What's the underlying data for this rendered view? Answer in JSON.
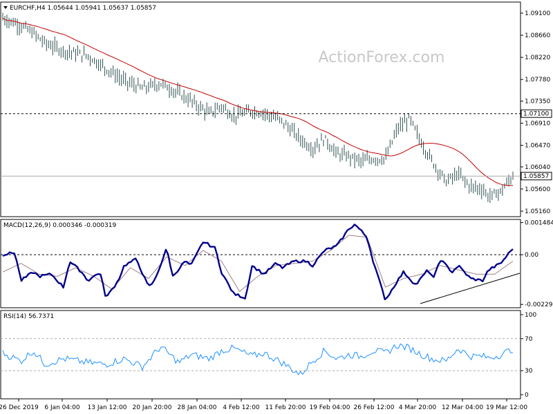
{
  "watermark": "ActionForex.com",
  "main": {
    "header": "EURCHF,H4  1.05644 1.05941 1.05637 1.05857",
    "ticks": [
      "1.09100",
      "1.08660",
      "1.08220",
      "1.07780",
      "1.07350",
      "1.06910",
      "1.06470",
      "1.06040",
      "1.05600",
      "1.05160"
    ],
    "level_label": "1.07100",
    "price_label": "1.05857",
    "level_value": 1.071,
    "price_value": 1.05857,
    "ylim": [
      1.0505,
      1.0932
    ]
  },
  "macd": {
    "header": "MACD(12,26,9) 0.000346 -0.000319",
    "ticks": [
      "0.001484",
      "0.00",
      "-0.002297"
    ],
    "ylim": [
      -0.00245,
      0.00163
    ]
  },
  "rsi": {
    "header": "RSI(14) 56.7371",
    "ticks": [
      "100",
      "70",
      "30",
      "0"
    ],
    "levels": [
      70,
      30
    ],
    "ylim": [
      0,
      100
    ]
  },
  "x_labels": [
    "26 Dec 2019",
    "6 Jan 04:00",
    "13 Jan 12:00",
    "20 Jan 20:00",
    "28 Jan 04:00",
    "4 Feb 12:00",
    "11 Feb 20:00",
    "19 Feb 04:00",
    "26 Feb 12:00",
    "4 Mar 20:00",
    "12 Mar 04:00",
    "19 Mar 12:00"
  ],
  "colors": {
    "bars": "#2f4f4f",
    "ma": "#c00000",
    "macd": "#00008b",
    "signal": "#a08080",
    "rsi": "#1e90ff",
    "grid": "#000000"
  },
  "chart_data": [
    {
      "type": "bar",
      "title": "EURCHF,H4",
      "ylim": [
        1.0505,
        1.0932
      ],
      "close_path_days": [
        0,
        3,
        5,
        7,
        10,
        14,
        17,
        20,
        23,
        26,
        29,
        31,
        34,
        36,
        38,
        41,
        43,
        46,
        49,
        51,
        53,
        55,
        57,
        59,
        61,
        63,
        65,
        67,
        69,
        71,
        73,
        75,
        77,
        79,
        80,
        82,
        84
      ],
      "close_path": [
        1.09,
        1.0885,
        1.087,
        1.085,
        1.0835,
        1.0825,
        1.08,
        1.0775,
        1.076,
        1.077,
        1.075,
        1.0735,
        1.071,
        1.0725,
        1.0705,
        1.0715,
        1.0712,
        1.0695,
        1.066,
        1.064,
        1.066,
        1.063,
        1.0625,
        1.0615,
        1.062,
        1.062,
        1.068,
        1.07,
        1.065,
        1.061,
        1.0575,
        1.059,
        1.0565,
        1.056,
        1.0545,
        1.0555,
        1.0586
      ]
    },
    {
      "type": "line",
      "title": "MACD(12,26,9)",
      "ylim": [
        -0.00245,
        0.00163
      ],
      "series": [
        {
          "name": "MACD",
          "x_days": [
            0,
            2,
            3,
            5,
            6,
            8,
            10,
            11,
            13,
            14,
            16,
            17,
            19,
            20,
            22,
            24,
            25,
            27,
            28,
            30,
            31,
            33,
            35,
            36,
            38,
            40,
            41,
            43,
            45,
            46,
            48,
            50,
            51,
            53,
            55,
            57,
            58,
            60,
            61,
            63,
            65,
            66,
            68,
            70,
            71,
            72,
            74,
            75,
            77,
            79,
            80,
            82,
            84
          ],
          "values": [
            0.0,
            0.0001,
            -0.0012,
            -0.0008,
            -0.001,
            -0.0009,
            -0.0015,
            -0.0003,
            -0.0008,
            -0.0012,
            -0.0008,
            -0.002,
            -0.0012,
            -0.0005,
            -0.0002,
            -0.0015,
            -0.0012,
            0.0003,
            -0.001,
            -0.0003,
            -0.0005,
            0.0006,
            0.0003,
            -0.0008,
            -0.0018,
            -0.002,
            -0.0005,
            -0.0009,
            -0.0004,
            -0.0006,
            -0.0003,
            -0.0003,
            -0.0005,
            0.0002,
            0.0004,
            0.0012,
            0.0014,
            0.0008,
            -0.0003,
            -0.0021,
            -0.0012,
            -0.0008,
            -0.0014,
            -0.0007,
            -0.0011,
            -0.0002,
            -0.0008,
            -0.0005,
            -0.0011,
            -0.0012,
            -0.0007,
            -0.0004,
            0.0003
          ]
        },
        {
          "name": "Signal",
          "x_days": [
            0,
            3,
            6,
            9,
            12,
            15,
            18,
            21,
            24,
            27,
            30,
            33,
            36,
            39,
            42,
            45,
            48,
            51,
            54,
            57,
            60,
            63,
            66,
            69,
            72,
            75,
            78,
            81,
            84
          ],
          "values": [
            -0.0008,
            -0.0004,
            -0.0009,
            -0.001,
            -0.0006,
            -0.001,
            -0.0016,
            -0.0006,
            -0.0011,
            -0.0001,
            -0.0005,
            0.0002,
            -0.0003,
            -0.0017,
            -0.001,
            -0.0005,
            -0.0004,
            -0.0003,
            0.0002,
            0.0009,
            0.0008,
            -0.0015,
            -0.0011,
            -0.0009,
            -0.0005,
            -0.0007,
            -0.0009,
            -0.0009,
            -0.0003
          ]
        }
      ]
    },
    {
      "type": "line",
      "title": "RSI(14)",
      "ylim": [
        0,
        100
      ],
      "series": [
        {
          "name": "RSI(14)",
          "x_days": [
            0,
            3,
            5,
            7,
            10,
            14,
            17,
            20,
            23,
            26,
            29,
            31,
            34,
            36,
            38,
            41,
            43,
            46,
            49,
            51,
            53,
            55,
            57,
            59,
            61,
            63,
            65,
            67,
            69,
            71,
            73,
            75,
            77,
            79,
            80,
            82,
            84
          ],
          "values": [
            52,
            42,
            55,
            38,
            45,
            40,
            38,
            45,
            35,
            60,
            40,
            50,
            45,
            55,
            58,
            48,
            52,
            40,
            25,
            42,
            55,
            45,
            50,
            48,
            55,
            52,
            62,
            58,
            50,
            44,
            42,
            58,
            48,
            48,
            46,
            50,
            57
          ]
        }
      ]
    }
  ]
}
